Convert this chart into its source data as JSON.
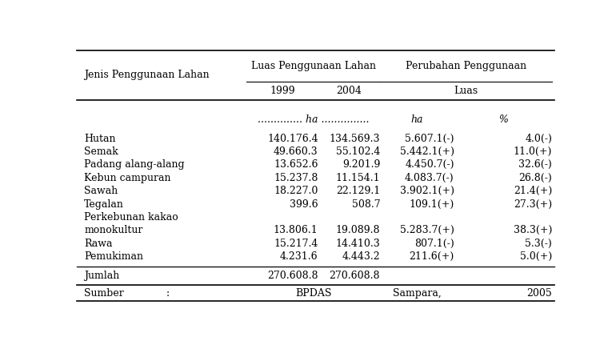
{
  "col_header_row1_left": "Jenis Penggunaan Lahan",
  "col_header_row1_mid": "Luas Penggunaan Lahan",
  "col_header_row1_right": "Perubahan Penggunaan",
  "col_header_row2_c1": "1999",
  "col_header_row2_c2": "2004",
  "col_header_row2_c34": "Luas",
  "unit_row": [
    "",
    ".............. ha ...............",
    "",
    "ha",
    "%"
  ],
  "rows": [
    [
      "Hutan",
      "140.176.4",
      "134.569.3",
      "5.607.1(-)",
      "4.0(-)"
    ],
    [
      "Semak",
      "49.660.3",
      "55.102.4",
      "5.442.1(+)",
      "11.0(+)"
    ],
    [
      "Padang alang-alang",
      "13.652.6",
      "9.201.9",
      "4.450.7(-)",
      "32.6(-)"
    ],
    [
      "Kebun campuran",
      "15.237.8",
      "11.154.1",
      "4.083.7(-)",
      "26.8(-)"
    ],
    [
      "Sawah",
      "18.227.0",
      "22.129.1",
      "3.902.1(+)",
      "21.4(+)"
    ],
    [
      "Tegalan",
      "399.6",
      "508.7",
      "109.1(+)",
      "27.3(+)"
    ],
    [
      "Perkebunan kakao",
      "",
      "",
      "",
      ""
    ],
    [
      "monokultur",
      "13.806.1",
      "19.089.8",
      "5.283.7(+)",
      "38.3(+)"
    ],
    [
      "Rawa",
      "15.217.4",
      "14.410.3",
      "807.1(-)",
      "5.3(-)"
    ],
    [
      "Pemukiman",
      "4.231.6",
      "4.443.2",
      "211.6(+)",
      "5.0(+)"
    ]
  ],
  "jumlah": [
    "Jumlah",
    "270.608.8",
    "270.608.8"
  ],
  "sumber": [
    "Sumber",
    ":",
    "BPDAS",
    "Sampara,",
    "2005"
  ],
  "bg_color": "#ffffff",
  "text_color": "#000000",
  "font_size": 9.0,
  "font_family": "DejaVu Serif"
}
